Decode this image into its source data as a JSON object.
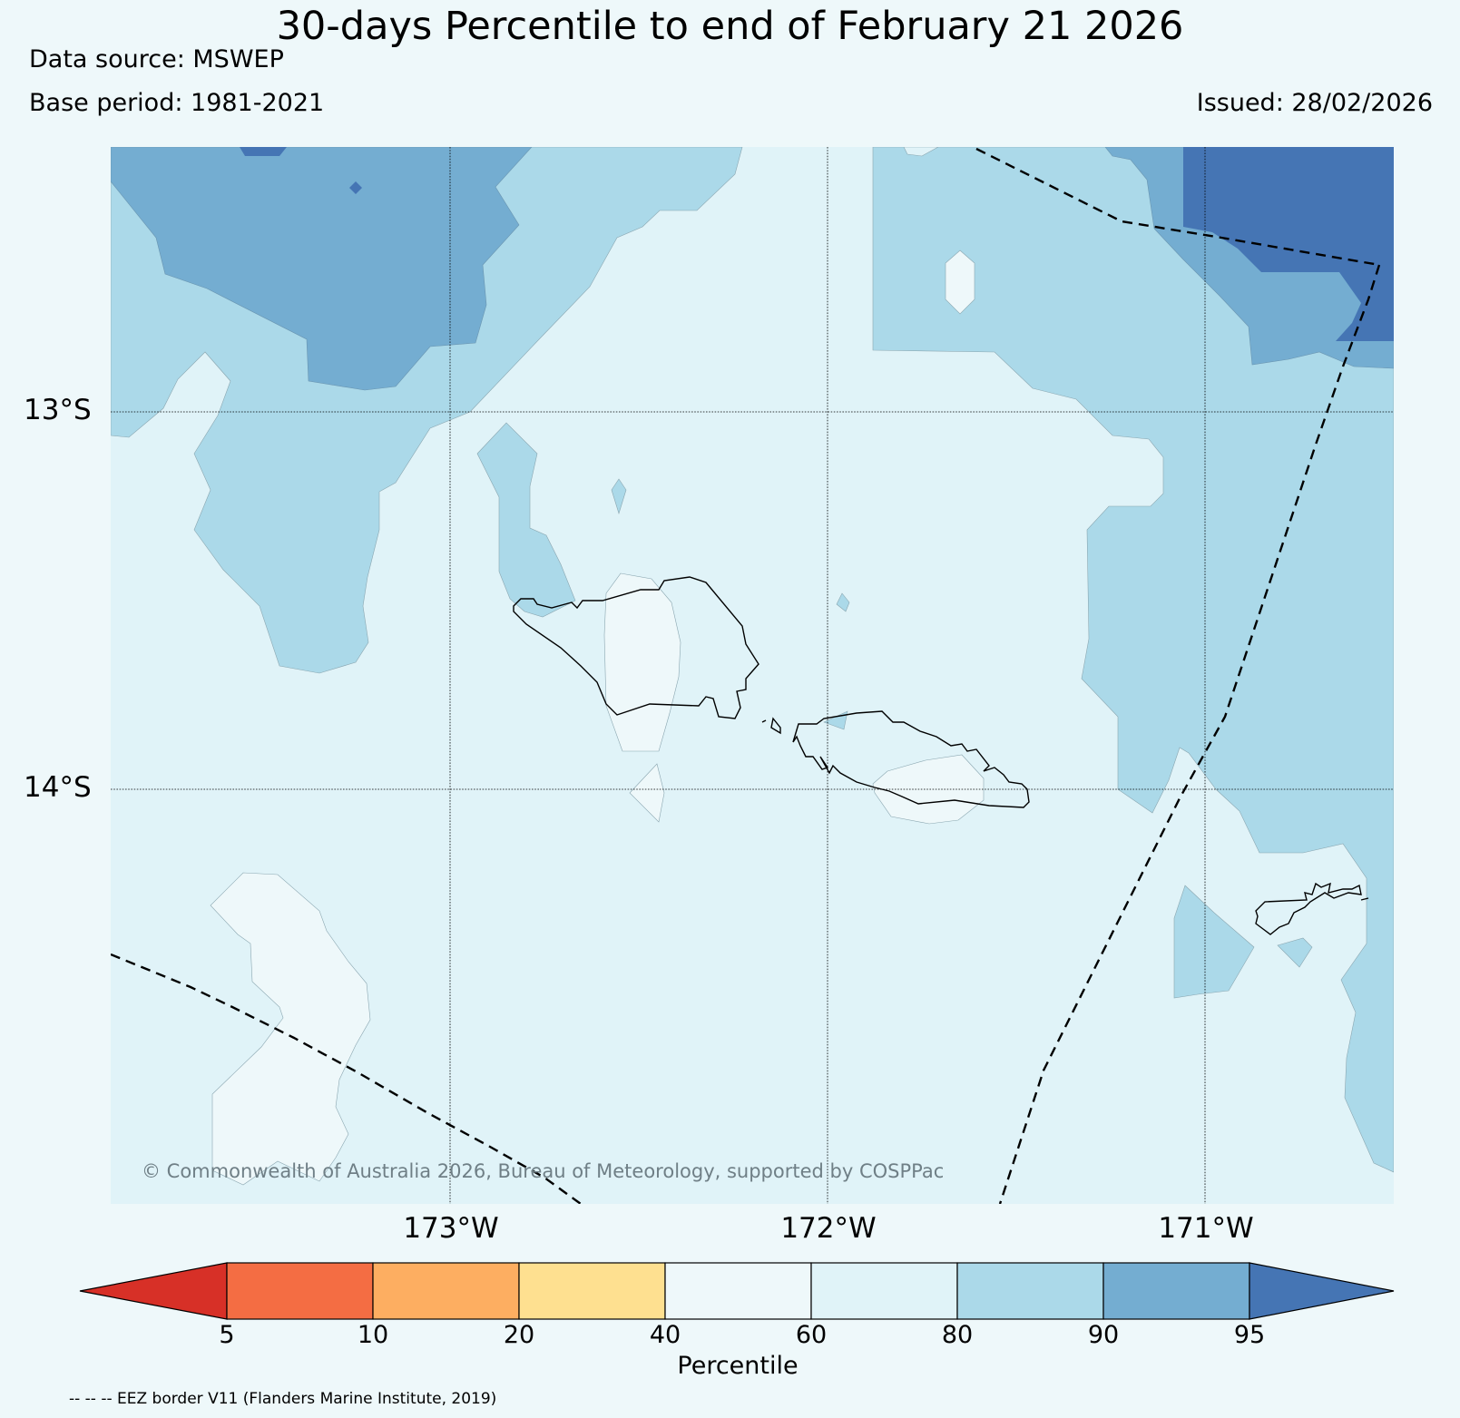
{
  "title": "30-days Percentile to end of February 21 2026",
  "data_source": "Data source: MSWEP",
  "base_period": "Base period: 1981-2021",
  "issued": "Issued: 28/02/2026",
  "map": {
    "lat_labels": [
      "13°S",
      "14°S"
    ],
    "lon_labels": [
      "173°W",
      "172°W",
      "171°W"
    ],
    "copyright": "© Commonwealth of Australia 2026, Bureau of Meteorology, supported by COSPPac"
  },
  "colorbar": {
    "label": "Percentile",
    "ticks": [
      "5",
      "10",
      "20",
      "40",
      "60",
      "80",
      "90",
      "95"
    ],
    "colors": {
      "below_5": "#d73027",
      "p5_10": "#f46d43",
      "p10_20": "#fdae61",
      "p20_40": "#fee090",
      "p40_60": "#eef8fa",
      "p60_80": "#e0f3f8",
      "p80_90": "#abd9e9",
      "p90_95": "#74add1",
      "above_95": "#4575b4"
    }
  },
  "legend_note": "-- -- -- EEZ border V11 (Flanders Marine Institute, 2019)"
}
